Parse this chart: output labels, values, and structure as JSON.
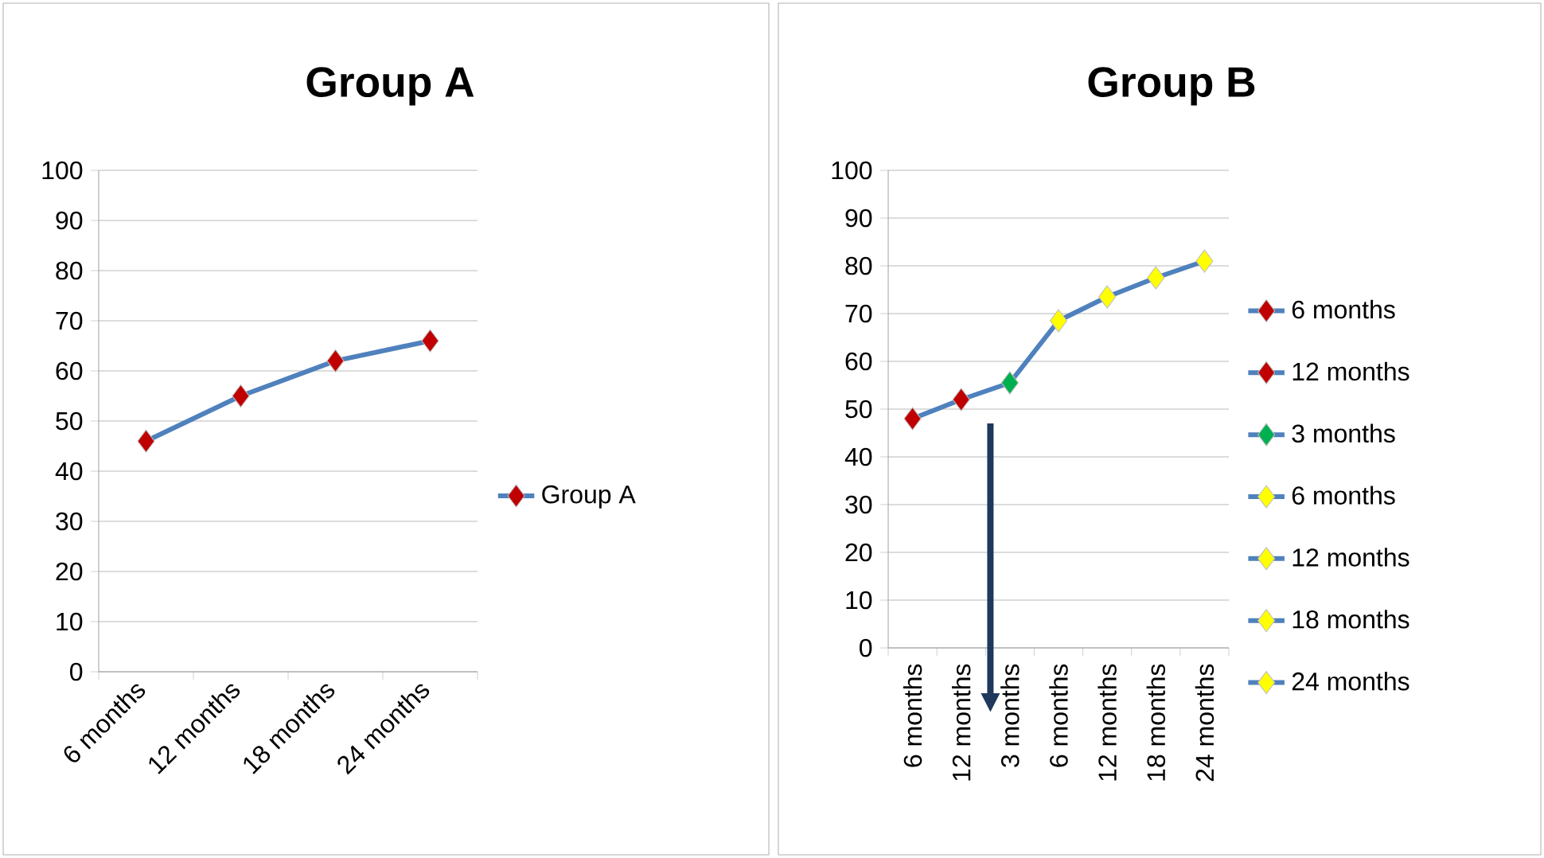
{
  "chart_data": [
    {
      "type": "line",
      "title": "Group A",
      "categories": [
        "6 months",
        "12 months",
        "18 months",
        "24 months"
      ],
      "series": [
        {
          "name": "Group A",
          "color": "#4f81bd",
          "colors": [
            "#c00000",
            "#c00000",
            "#c00000",
            "#c00000"
          ],
          "values": [
            46,
            55,
            62,
            66
          ]
        }
      ],
      "ylim": [
        0,
        100
      ],
      "yticks": [
        0,
        10,
        20,
        30,
        40,
        50,
        60,
        70,
        80,
        90,
        100
      ],
      "grid": "y",
      "legend": "right",
      "marker": "diamond",
      "line_style": "solid"
    },
    {
      "type": "line",
      "title": "Group B",
      "categories": [
        "6 months",
        "12 months",
        "3 months",
        "6 months",
        "12 months",
        "18 months",
        "24 months"
      ],
      "series": [
        {
          "color": "#4f81bd",
          "marker": "none",
          "values": [
            48,
            52,
            55.5,
            68.5,
            73.5,
            77.5,
            81
          ]
        },
        {
          "type": "scatter",
          "name": "6 months",
          "color": "#c00000",
          "values": [
            48,
            null,
            null,
            null,
            null,
            null,
            null
          ]
        },
        {
          "type": "scatter",
          "name": "12 months",
          "color": "#c00000",
          "values": [
            null,
            52,
            null,
            null,
            null,
            null,
            null
          ]
        },
        {
          "type": "scatter",
          "name": "3 months",
          "color": "#00b050",
          "values": [
            null,
            null,
            55.5,
            null,
            null,
            null,
            null
          ]
        },
        {
          "type": "scatter",
          "name": "6 months",
          "color": "#ffff00",
          "values": [
            null,
            null,
            null,
            68.5,
            null,
            null,
            null
          ]
        },
        {
          "type": "scatter",
          "name": "12 months",
          "color": "#ffff00",
          "values": [
            null,
            null,
            null,
            null,
            73.5,
            null,
            null
          ]
        },
        {
          "type": "scatter",
          "name": "18 months",
          "color": "#ffff00",
          "values": [
            null,
            null,
            null,
            null,
            null,
            77.5,
            null
          ]
        },
        {
          "type": "scatter",
          "name": "24 months",
          "color": "#ffff00",
          "values": [
            null,
            null,
            null,
            null,
            null,
            null,
            81
          ]
        }
      ],
      "ylim": [
        0,
        100
      ],
      "yticks": [
        0,
        10,
        20,
        30,
        40,
        50,
        60,
        70,
        80,
        90,
        100
      ],
      "grid": "y",
      "legend": "right",
      "marker": "diamond",
      "line_style": "solid"
    }
  ]
}
